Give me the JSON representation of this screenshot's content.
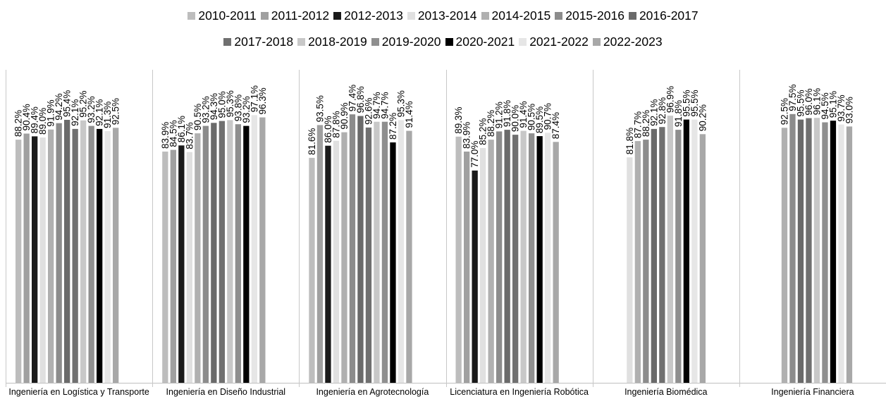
{
  "chart_data": {
    "type": "bar",
    "categories": [
      "Ingeniería en Logística y Transporte",
      "Ingeniería en Diseño Industrial",
      "Ingeniería en Agrotecnología",
      "Licenciatura en Ingeniería Robótica",
      "Ingeniería Biomédica",
      "Ingeniería Financiera"
    ],
    "series": [
      {
        "name": "2010-2011",
        "color": "#bdbdbd",
        "values": [
          88.2,
          83.9,
          81.6,
          89.3,
          null,
          null
        ],
        "labels": [
          "88.2%",
          "83.9%",
          "81.6%",
          "89.3%",
          null,
          null
        ]
      },
      {
        "name": "2011-2012",
        "color": "#a0a0a0",
        "values": [
          90.4,
          84.5,
          93.5,
          83.9,
          null,
          null
        ],
        "labels": [
          "90.4%",
          "84.5%",
          "93.5%",
          "83.9%",
          null,
          null
        ]
      },
      {
        "name": "2012-2013",
        "color": "#1a1a1a",
        "values": [
          89.4,
          86.1,
          86.0,
          77.0,
          null,
          null
        ],
        "labels": [
          "89.4%",
          "86.1%",
          "86.0%",
          "77.0%",
          null,
          null
        ]
      },
      {
        "name": "2013-2014",
        "color": "#e0e0e0",
        "values": [
          89.0,
          83.7,
          87.8,
          85.2,
          81.8,
          null
        ],
        "labels": [
          "89.0%",
          "83.7%",
          "87.8%",
          "85.2%",
          "81.8%",
          null
        ]
      },
      {
        "name": "2014-2015",
        "color": "#b0b0b0",
        "values": [
          91.9,
          90.5,
          90.9,
          88.2,
          87.7,
          92.5
        ],
        "labels": [
          "91.9%",
          "90.5%",
          "90.9%",
          "88.2%",
          "87.7%",
          "92.5%"
        ]
      },
      {
        "name": "2015-2016",
        "color": "#8c8c8c",
        "values": [
          94.2,
          93.2,
          97.4,
          91.2,
          88.2,
          97.5
        ],
        "labels": [
          "94.2%",
          "93.2%",
          "97.4%",
          "91.2%",
          "88.2%",
          "97.5%"
        ]
      },
      {
        "name": "2016-2017",
        "color": "#6a6a6a",
        "values": [
          95.4,
          94.3,
          96.8,
          91.8,
          92.1,
          95.5
        ],
        "labels": [
          "95.4%",
          "94.3%",
          "96.8%",
          "91.8%",
          "92.1%",
          "95.5%"
        ]
      },
      {
        "name": "2017-2018",
        "color": "#707070",
        "values": [
          92.1,
          95.0,
          92.6,
          90.0,
          92.8,
          96.0
        ],
        "labels": [
          "92.1%",
          "95.0%",
          "92.6%",
          "90.0%",
          "92.8%",
          "96.0%"
        ]
      },
      {
        "name": "2018-2019",
        "color": "#c8c8c8",
        "values": [
          95.2,
          95.3,
          94.7,
          91.4,
          96.9,
          96.1
        ],
        "labels": [
          "95.2%",
          "95.3%",
          "94.7%",
          "91.4%",
          "96.9%",
          "96.1%"
        ]
      },
      {
        "name": "2019-2020",
        "color": "#8f8f8f",
        "values": [
          93.2,
          93.8,
          94.7,
          90.5,
          91.8,
          94.5
        ],
        "labels": [
          "93.2%",
          "93.8%",
          "94.7%",
          "90.5%",
          "91.8%",
          "94.5%"
        ]
      },
      {
        "name": "2020-2021",
        "color": "#000000",
        "values": [
          92.1,
          93.2,
          87.2,
          89.5,
          95.5,
          95.1
        ],
        "labels": [
          "92.1%",
          "93.2%",
          "87.2%",
          "89.5%",
          "95.5%",
          "95.1%"
        ]
      },
      {
        "name": "2021-2022",
        "color": "#e6e6e6",
        "values": [
          91.3,
          97.1,
          95.3,
          90.7,
          95.5,
          93.7
        ],
        "labels": [
          "91.3%",
          "97.1%",
          "95.3%",
          "90.7%",
          "95.5%",
          "93.7%"
        ]
      },
      {
        "name": "2022-2023",
        "color": "#a8a8a8",
        "values": [
          92.5,
          96.3,
          91.4,
          87.4,
          90.2,
          93.0
        ],
        "labels": [
          "92.5%",
          "96.3%",
          "91.4%",
          "87.4%",
          "90.2%",
          "93.0%"
        ]
      }
    ],
    "legend_position": "top",
    "grid": false
  }
}
